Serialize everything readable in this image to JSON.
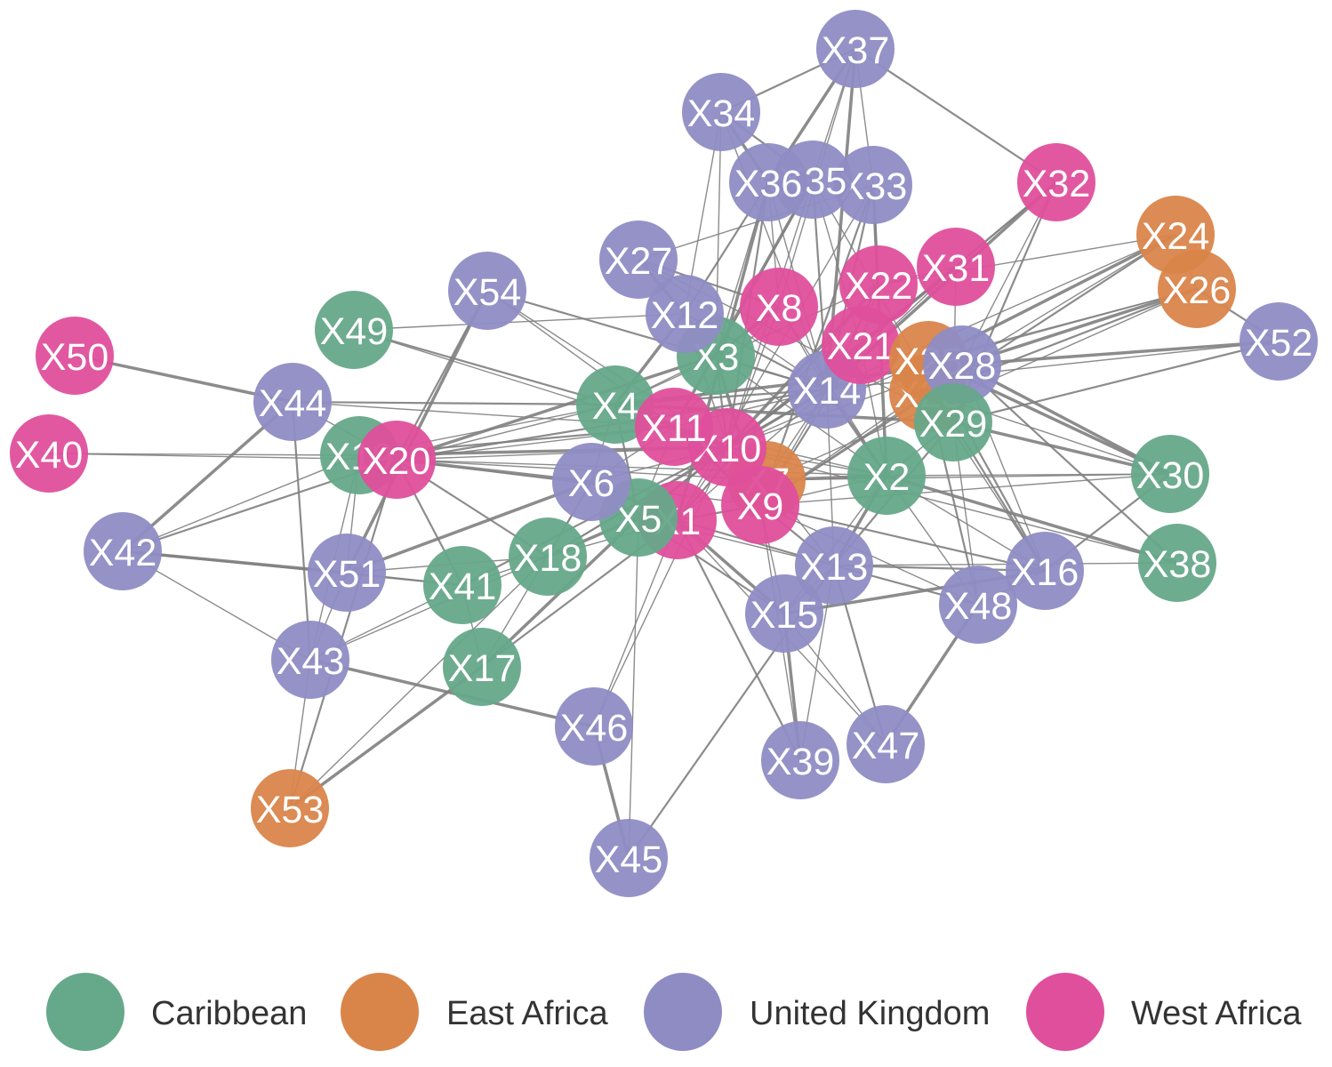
{
  "colors": {
    "Caribbean": "#66a88a",
    "East Africa": "#d9854a",
    "United Kingdom": "#8f8cc4",
    "West Africa": "#df4f9c",
    "edge": "#808080"
  },
  "legend": [
    {
      "group": "Caribbean",
      "label": "Caribbean"
    },
    {
      "group": "East Africa",
      "label": "East Africa"
    },
    {
      "group": "United Kingdom",
      "label": "United Kingdom"
    },
    {
      "group": "West Africa",
      "label": "West Africa"
    }
  ],
  "nodes": [
    {
      "id": "X1",
      "label": "X1",
      "group": "West Africa"
    },
    {
      "id": "X2",
      "label": "X2",
      "group": "Caribbean"
    },
    {
      "id": "X3",
      "label": "X3",
      "group": "Caribbean"
    },
    {
      "id": "X4",
      "label": "X4",
      "group": "Caribbean"
    },
    {
      "id": "X5",
      "label": "X5",
      "group": "Caribbean"
    },
    {
      "id": "X6",
      "label": "X6",
      "group": "United Kingdom"
    },
    {
      "id": "X7",
      "label": "X7",
      "group": "East Africa"
    },
    {
      "id": "X8",
      "label": "X8",
      "group": "West Africa"
    },
    {
      "id": "X9",
      "label": "X9",
      "group": "West Africa"
    },
    {
      "id": "X10",
      "label": "X10",
      "group": "West Africa"
    },
    {
      "id": "X11",
      "label": "X11",
      "group": "West Africa"
    },
    {
      "id": "X12",
      "label": "X12",
      "group": "United Kingdom"
    },
    {
      "id": "X13",
      "label": "X13",
      "group": "United Kingdom"
    },
    {
      "id": "X14",
      "label": "X14",
      "group": "United Kingdom"
    },
    {
      "id": "X15",
      "label": "X15",
      "group": "United Kingdom"
    },
    {
      "id": "X16",
      "label": "X16",
      "group": "United Kingdom"
    },
    {
      "id": "X17",
      "label": "X17",
      "group": "Caribbean"
    },
    {
      "id": "X18",
      "label": "X18",
      "group": "Caribbean"
    },
    {
      "id": "X19",
      "label": "X19",
      "group": "Caribbean"
    },
    {
      "id": "X20",
      "label": "X20",
      "group": "West Africa"
    },
    {
      "id": "X21",
      "label": "X21",
      "group": "West Africa"
    },
    {
      "id": "X22",
      "label": "X22",
      "group": "West Africa"
    },
    {
      "id": "X23",
      "label": "X23",
      "group": "East Africa"
    },
    {
      "id": "X24",
      "label": "X24",
      "group": "East Africa"
    },
    {
      "id": "X25",
      "label": "X25",
      "group": "East Africa"
    },
    {
      "id": "X26",
      "label": "X26",
      "group": "East Africa"
    },
    {
      "id": "X27",
      "label": "X27",
      "group": "United Kingdom"
    },
    {
      "id": "X28",
      "label": "X28",
      "group": "United Kingdom"
    },
    {
      "id": "X29",
      "label": "X29",
      "group": "Caribbean"
    },
    {
      "id": "X30",
      "label": "X30",
      "group": "Caribbean"
    },
    {
      "id": "X31",
      "label": "X31",
      "group": "West Africa"
    },
    {
      "id": "X32",
      "label": "X32",
      "group": "West Africa"
    },
    {
      "id": "X33",
      "label": "X33",
      "group": "United Kingdom"
    },
    {
      "id": "X34",
      "label": "X34",
      "group": "United Kingdom"
    },
    {
      "id": "X35",
      "label": "X35",
      "group": "United Kingdom"
    },
    {
      "id": "X36",
      "label": "X36",
      "group": "United Kingdom"
    },
    {
      "id": "X37",
      "label": "X37",
      "group": "United Kingdom"
    },
    {
      "id": "X38",
      "label": "X38",
      "group": "Caribbean"
    },
    {
      "id": "X39",
      "label": "X39",
      "group": "United Kingdom"
    },
    {
      "id": "X40",
      "label": "X40",
      "group": "West Africa"
    },
    {
      "id": "X41",
      "label": "X41",
      "group": "Caribbean"
    },
    {
      "id": "X42",
      "label": "X42",
      "group": "United Kingdom"
    },
    {
      "id": "X43",
      "label": "X43",
      "group": "United Kingdom"
    },
    {
      "id": "X44",
      "label": "X44",
      "group": "United Kingdom"
    },
    {
      "id": "X45",
      "label": "X45",
      "group": "United Kingdom"
    },
    {
      "id": "X46",
      "label": "X46",
      "group": "United Kingdom"
    },
    {
      "id": "X47",
      "label": "X47",
      "group": "United Kingdom"
    },
    {
      "id": "X48",
      "label": "X48",
      "group": "United Kingdom"
    },
    {
      "id": "X49",
      "label": "X49",
      "group": "Caribbean"
    },
    {
      "id": "X50",
      "label": "X50",
      "group": "West Africa"
    },
    {
      "id": "X51",
      "label": "X51",
      "group": "United Kingdom"
    },
    {
      "id": "X52",
      "label": "X52",
      "group": "United Kingdom"
    },
    {
      "id": "X53",
      "label": "X53",
      "group": "East Africa"
    },
    {
      "id": "X54",
      "label": "X54",
      "group": "United Kingdom"
    }
  ],
  "edges": [
    [
      "X50",
      "X44"
    ],
    [
      "X40",
      "X19"
    ],
    [
      "X40",
      "X20"
    ],
    [
      "X44",
      "X4"
    ],
    [
      "X44",
      "X20"
    ],
    [
      "X44",
      "X42"
    ],
    [
      "X44",
      "X43"
    ],
    [
      "X44",
      "X11"
    ],
    [
      "X42",
      "X19"
    ],
    [
      "X42",
      "X20"
    ],
    [
      "X42",
      "X51"
    ],
    [
      "X42",
      "X43"
    ],
    [
      "X42",
      "X41"
    ],
    [
      "X43",
      "X51"
    ],
    [
      "X43",
      "X53"
    ],
    [
      "X43",
      "X46"
    ],
    [
      "X43",
      "X19"
    ],
    [
      "X43",
      "X18"
    ],
    [
      "X53",
      "X20"
    ],
    [
      "X53",
      "X18"
    ],
    [
      "X53",
      "X17"
    ],
    [
      "X49",
      "X4"
    ],
    [
      "X49",
      "X12"
    ],
    [
      "X49",
      "X10"
    ],
    [
      "X54",
      "X20"
    ],
    [
      "X54",
      "X51"
    ],
    [
      "X54",
      "X10"
    ],
    [
      "X54",
      "X14"
    ],
    [
      "X54",
      "X11"
    ],
    [
      "X19",
      "X4"
    ],
    [
      "X19",
      "X10"
    ],
    [
      "X19",
      "X51"
    ],
    [
      "X19",
      "X9"
    ],
    [
      "X19",
      "X11"
    ],
    [
      "X20",
      "X4"
    ],
    [
      "X20",
      "X6"
    ],
    [
      "X20",
      "X18"
    ],
    [
      "X20",
      "X11"
    ],
    [
      "X20",
      "X10"
    ],
    [
      "X20",
      "X14"
    ],
    [
      "X20",
      "X3"
    ],
    [
      "X20",
      "X7"
    ],
    [
      "X20",
      "X41"
    ],
    [
      "X20",
      "X2"
    ],
    [
      "X51",
      "X41"
    ],
    [
      "X51",
      "X6"
    ],
    [
      "X51",
      "X18"
    ],
    [
      "X41",
      "X18"
    ],
    [
      "X41",
      "X10"
    ],
    [
      "X41",
      "X43"
    ],
    [
      "X18",
      "X5"
    ],
    [
      "X18",
      "X6"
    ],
    [
      "X18",
      "X10"
    ],
    [
      "X18",
      "X1"
    ],
    [
      "X18",
      "X14"
    ],
    [
      "X17",
      "X5"
    ],
    [
      "X17",
      "X6"
    ],
    [
      "X17",
      "X1"
    ],
    [
      "X17",
      "X41"
    ],
    [
      "X46",
      "X1"
    ],
    [
      "X46",
      "X45"
    ],
    [
      "X46",
      "X10"
    ],
    [
      "X45",
      "X5"
    ],
    [
      "X45",
      "X13"
    ],
    [
      "X27",
      "X14"
    ],
    [
      "X27",
      "X12"
    ],
    [
      "X27",
      "X8"
    ],
    [
      "X27",
      "X29"
    ],
    [
      "X27",
      "X33"
    ],
    [
      "X34",
      "X37"
    ],
    [
      "X34",
      "X36"
    ],
    [
      "X34",
      "X12"
    ],
    [
      "X34",
      "X35"
    ],
    [
      "X34",
      "X3"
    ],
    [
      "X34",
      "X14"
    ],
    [
      "X37",
      "X36"
    ],
    [
      "X37",
      "X35"
    ],
    [
      "X37",
      "X33"
    ],
    [
      "X37",
      "X32"
    ],
    [
      "X37",
      "X8"
    ],
    [
      "X37",
      "X14"
    ],
    [
      "X36",
      "X12"
    ],
    [
      "X36",
      "X3"
    ],
    [
      "X36",
      "X14"
    ],
    [
      "X36",
      "X10"
    ],
    [
      "X36",
      "X1"
    ],
    [
      "X36",
      "X8"
    ],
    [
      "X35",
      "X14"
    ],
    [
      "X35",
      "X3"
    ],
    [
      "X35",
      "X10"
    ],
    [
      "X35",
      "X11"
    ],
    [
      "X35",
      "X21"
    ],
    [
      "X35",
      "X29"
    ],
    [
      "X33",
      "X14"
    ],
    [
      "X33",
      "X22"
    ],
    [
      "X33",
      "X2"
    ],
    [
      "X33",
      "X9"
    ],
    [
      "X33",
      "X1"
    ],
    [
      "X32",
      "X31"
    ],
    [
      "X32",
      "X21"
    ],
    [
      "X32",
      "X14"
    ],
    [
      "X32",
      "X28"
    ],
    [
      "X32",
      "X29"
    ],
    [
      "X24",
      "X26"
    ],
    [
      "X24",
      "X28"
    ],
    [
      "X24",
      "X25"
    ],
    [
      "X24",
      "X14"
    ],
    [
      "X24",
      "X22"
    ],
    [
      "X24",
      "X9"
    ],
    [
      "X26",
      "X25"
    ],
    [
      "X26",
      "X28"
    ],
    [
      "X26",
      "X52"
    ],
    [
      "X26",
      "X14"
    ],
    [
      "X26",
      "X7"
    ],
    [
      "X26",
      "X23"
    ],
    [
      "X52",
      "X28"
    ],
    [
      "X52",
      "X14"
    ],
    [
      "X52",
      "X29"
    ],
    [
      "X31",
      "X14"
    ],
    [
      "X31",
      "X22"
    ],
    [
      "X31",
      "X21"
    ],
    [
      "X31",
      "X29"
    ],
    [
      "X31",
      "X10"
    ],
    [
      "X22",
      "X14"
    ],
    [
      "X22",
      "X21"
    ],
    [
      "X22",
      "X10"
    ],
    [
      "X22",
      "X1"
    ],
    [
      "X22",
      "X4"
    ],
    [
      "X21",
      "X14"
    ],
    [
      "X21",
      "X9"
    ],
    [
      "X21",
      "X10"
    ],
    [
      "X21",
      "X2"
    ],
    [
      "X21",
      "X5"
    ],
    [
      "X8",
      "X10"
    ],
    [
      "X8",
      "X14"
    ],
    [
      "X8",
      "X3"
    ],
    [
      "X8",
      "X11"
    ],
    [
      "X8",
      "X2"
    ],
    [
      "X12",
      "X3"
    ],
    [
      "X12",
      "X10"
    ],
    [
      "X12",
      "X4"
    ],
    [
      "X12",
      "X14"
    ],
    [
      "X3",
      "X14"
    ],
    [
      "X3",
      "X4"
    ],
    [
      "X3",
      "X10"
    ],
    [
      "X3",
      "X9"
    ],
    [
      "X3",
      "X2"
    ],
    [
      "X14",
      "X10"
    ],
    [
      "X14",
      "X9"
    ],
    [
      "X14",
      "X7"
    ],
    [
      "X14",
      "X2"
    ],
    [
      "X14",
      "X13"
    ],
    [
      "X14",
      "X11"
    ],
    [
      "X14",
      "X4"
    ],
    [
      "X14",
      "X1"
    ],
    [
      "X25",
      "X30"
    ],
    [
      "X25",
      "X16"
    ],
    [
      "X25",
      "X29"
    ],
    [
      "X25",
      "X10"
    ],
    [
      "X25",
      "X14"
    ],
    [
      "X28",
      "X30"
    ],
    [
      "X28",
      "X16"
    ],
    [
      "X28",
      "X38"
    ],
    [
      "X28",
      "X10"
    ],
    [
      "X28",
      "X9"
    ],
    [
      "X28",
      "X4"
    ],
    [
      "X23",
      "X16"
    ],
    [
      "X23",
      "X30"
    ],
    [
      "X23",
      "X48"
    ],
    [
      "X23",
      "X9"
    ],
    [
      "X29",
      "X30"
    ],
    [
      "X29",
      "X16"
    ],
    [
      "X29",
      "X48"
    ],
    [
      "X29",
      "X2"
    ],
    [
      "X29",
      "X13"
    ],
    [
      "X29",
      "X4"
    ],
    [
      "X30",
      "X2"
    ],
    [
      "X30",
      "X16"
    ],
    [
      "X30",
      "X9"
    ],
    [
      "X30",
      "X7"
    ],
    [
      "X38",
      "X2"
    ],
    [
      "X38",
      "X13"
    ],
    [
      "X38",
      "X10"
    ],
    [
      "X16",
      "X13"
    ],
    [
      "X16",
      "X2"
    ],
    [
      "X16",
      "X15"
    ],
    [
      "X16",
      "X9"
    ],
    [
      "X16",
      "X48"
    ],
    [
      "X48",
      "X2"
    ],
    [
      "X48",
      "X13"
    ],
    [
      "X48",
      "X47"
    ],
    [
      "X48",
      "X9"
    ],
    [
      "X47",
      "X13"
    ],
    [
      "X47",
      "X15"
    ],
    [
      "X47",
      "X1"
    ],
    [
      "X39",
      "X15"
    ],
    [
      "X39",
      "X13"
    ],
    [
      "X39",
      "X9"
    ],
    [
      "X39",
      "X1"
    ],
    [
      "X15",
      "X13"
    ],
    [
      "X15",
      "X1"
    ],
    [
      "X15",
      "X5"
    ],
    [
      "X15",
      "X9"
    ],
    [
      "X15",
      "X2"
    ],
    [
      "X13",
      "X9"
    ],
    [
      "X13",
      "X2"
    ],
    [
      "X13",
      "X7"
    ],
    [
      "X13",
      "X1"
    ],
    [
      "X13",
      "X5"
    ],
    [
      "X2",
      "X9"
    ],
    [
      "X2",
      "X7"
    ],
    [
      "X2",
      "X10"
    ],
    [
      "X2",
      "X11"
    ],
    [
      "X4",
      "X11"
    ],
    [
      "X4",
      "X6"
    ],
    [
      "X4",
      "X10"
    ],
    [
      "X4",
      "X5"
    ],
    [
      "X6",
      "X11"
    ],
    [
      "X6",
      "X10"
    ],
    [
      "X6",
      "X5"
    ],
    [
      "X6",
      "X1"
    ],
    [
      "X5",
      "X1"
    ],
    [
      "X5",
      "X10"
    ],
    [
      "X5",
      "X11"
    ],
    [
      "X11",
      "X10"
    ],
    [
      "X11",
      "X9"
    ],
    [
      "X11",
      "X7"
    ],
    [
      "X10",
      "X7"
    ],
    [
      "X10",
      "X9"
    ],
    [
      "X10",
      "X1"
    ],
    [
      "X9",
      "X7"
    ],
    [
      "X9",
      "X1"
    ]
  ]
}
